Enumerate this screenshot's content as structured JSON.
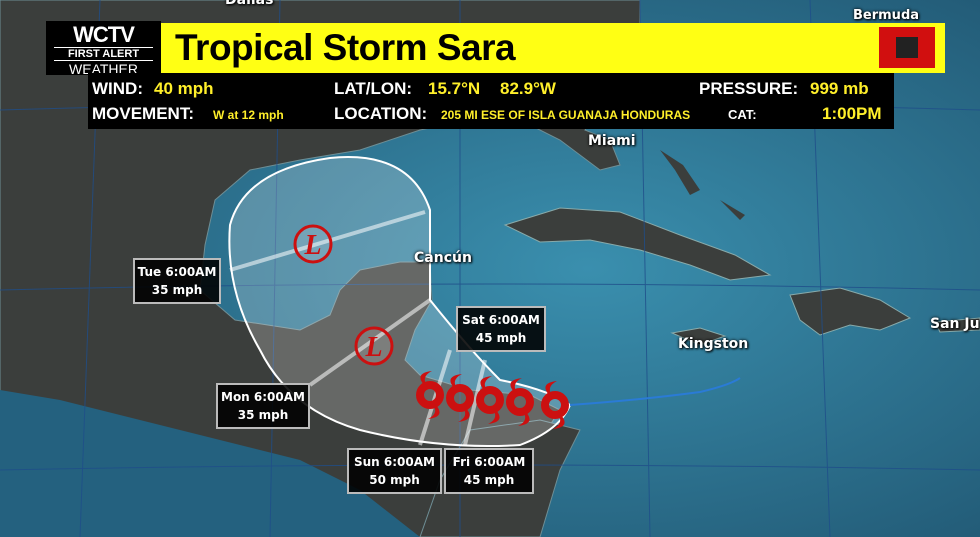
{
  "header": {
    "logo": {
      "callsign": "WCTV",
      "line2": "FIRST ALERT",
      "line3": "WEATHER"
    },
    "title": "Tropical Storm Sara",
    "flag_color": "#d10f0f",
    "title_bg_color": "#ffff14"
  },
  "info": {
    "wind_label": "WIND:",
    "wind_value": "40 mph",
    "movement_label": "MOVEMENT:",
    "movement_value": "W at 12 mph",
    "latlon_label": "LAT/LON:",
    "lat_value": "15.7°N",
    "lon_value": "82.9°W",
    "location_label": "LOCATION:",
    "location_value": "205 MI ESE OF ISLA GUANAJA HONDURAS",
    "pressure_label": "PRESSURE:",
    "pressure_value": "999 mb",
    "cat_label": "CAT:",
    "time_value": "1:00PM"
  },
  "cities": [
    "Dallas",
    "Bermuda",
    "Miami",
    "Cancún",
    "Kingston",
    "San Ju"
  ],
  "forecast_points": [
    {
      "time": "Fri 6:00AM",
      "wind": "45 mph",
      "icon": "tropical-storm"
    },
    {
      "time": "Sat 6:00AM",
      "wind": "45 mph",
      "icon": "tropical-storm"
    },
    {
      "time": "Sun 6:00AM",
      "wind": "50 mph",
      "icon": "tropical-storm"
    },
    {
      "time": "Mon 6:00AM",
      "wind": "35 mph",
      "icon": "low"
    },
    {
      "time": "Tue 6:00AM",
      "wind": "35 mph",
      "icon": "low"
    }
  ],
  "colors": {
    "storm": "#cc1010",
    "ocean": "#2b6c8a",
    "land": "#3b3e3c",
    "text_accent": "#ffef2a"
  },
  "low_symbol": "L"
}
